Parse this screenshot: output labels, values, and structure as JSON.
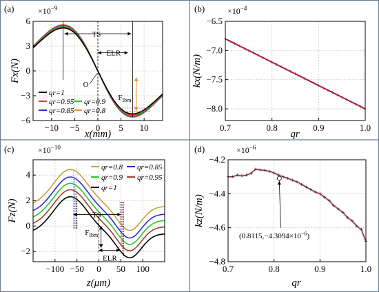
{
  "chart_data": [
    {
      "panel": "(a)",
      "type": "line",
      "xlabel": "x(mm)",
      "ylabel": "Fx(N)",
      "scale_label": "×10",
      "scale_exp": "−9",
      "xlim": [
        -14,
        14
      ],
      "ylim": [
        -6,
        6
      ],
      "xticks": [
        "−10",
        "−5",
        "0",
        "5",
        "10"
      ],
      "xtick_values": [
        -10,
        -5,
        0,
        5,
        10
      ],
      "yticks": [
        "6",
        "3",
        "0",
        "−3",
        "−6"
      ],
      "ytick_values": [
        6,
        3,
        0,
        -3,
        -6
      ],
      "series": [
        {
          "name": "qr=1",
          "color": "#000000",
          "peak": 5.2
        },
        {
          "name": "qr=0.95",
          "color": "#e8312a",
          "peak": 5.3
        },
        {
          "name": "qr=0.9",
          "color": "#28c828",
          "peak": 5.4
        },
        {
          "name": "qr=0.85",
          "color": "#2b2bd6",
          "peak": 5.5
        },
        {
          "name": "qr=0.8",
          "color": "#f08a24",
          "peak": 5.6
        }
      ],
      "annotations": {
        "ts": "TS",
        "elr": "ELR",
        "origin": "O",
        "fibm": "F",
        "fibm_sub": "Ibm"
      }
    },
    {
      "panel": "(b)",
      "type": "line",
      "xlabel": "qr",
      "ylabel": "kx(N/m)",
      "scale_label": "×10",
      "scale_exp": "−4",
      "xlim": [
        0.7,
        1.0
      ],
      "ylim": [
        -8.2,
        -6.5
      ],
      "xticks": [
        "0.7",
        "0.8",
        "0.9",
        "1.0"
      ],
      "xtick_values": [
        0.7,
        0.8,
        0.9,
        1.0
      ],
      "yticks": [
        "−6.5",
        "−7.0",
        "−7.5",
        "−8.0"
      ],
      "ytick_values": [
        -6.5,
        -7.0,
        -7.5,
        -8.0
      ],
      "series": [
        {
          "name": "kx",
          "color": "#c8102e",
          "x_start": 0.7,
          "x_end": 1.0,
          "y_start": -6.8,
          "y_end": -8.0,
          "n": 31
        }
      ]
    },
    {
      "panel": "(c)",
      "type": "line",
      "xlabel": "z(μm)",
      "ylabel": "Fz(N)",
      "scale_label": "×10",
      "scale_exp": "−10",
      "xlim": [
        -150,
        150
      ],
      "ylim": [
        -2.8,
        5.2
      ],
      "xticks": [
        "−100",
        "−50",
        "0",
        "50",
        "100"
      ],
      "xtick_values": [
        -100,
        -50,
        0,
        50,
        100
      ],
      "yticks": [
        "4",
        "2",
        "0",
        "−2"
      ],
      "ytick_values": [
        4,
        2,
        0,
        -2
      ],
      "series": [
        {
          "name": "qr=0.8",
          "color": "#c8a038",
          "offset": 1.55
        },
        {
          "name": "qr=0.85",
          "color": "#2b2bd6",
          "offset": 0.95
        },
        {
          "name": "qr=0.9",
          "color": "#28c828",
          "offset": 0.45
        },
        {
          "name": "qr=0.95",
          "color": "#a0402a",
          "offset": -0.05
        },
        {
          "name": "qr=1",
          "color": "#000000",
          "offset": -0.6
        }
      ],
      "annotations": {
        "ts": "TS",
        "elr": "ELR",
        "fibm": "F",
        "fibm_sub": "Ibm"
      }
    },
    {
      "panel": "(d)",
      "type": "line",
      "xlabel": "qr",
      "ylabel": "kz(N/m)",
      "scale_label": "×10",
      "scale_exp": "−6",
      "xlim": [
        0.7,
        1.0
      ],
      "ylim": [
        -4.8,
        -4.2
      ],
      "xticks": [
        "0.7",
        "0.8",
        "0.9",
        "1.0"
      ],
      "xtick_values": [
        0.7,
        0.8,
        0.9,
        1.0
      ],
      "yticks": [
        "−4.2",
        "−4.4",
        "−4.6",
        "−4.8"
      ],
      "ytick_values": [
        -4.2,
        -4.4,
        -4.6,
        -4.8
      ],
      "series": [
        {
          "name": "kz",
          "color": "#7a2f2f",
          "x": [
            0.7,
            0.71,
            0.72,
            0.73,
            0.74,
            0.75,
            0.76,
            0.77,
            0.78,
            0.79,
            0.8,
            0.81,
            0.82,
            0.83,
            0.84,
            0.85,
            0.86,
            0.87,
            0.88,
            0.89,
            0.9,
            0.91,
            0.92,
            0.93,
            0.94,
            0.95,
            0.96,
            0.97,
            0.98,
            0.99,
            1.0
          ],
          "y": [
            -4.3,
            -4.3,
            -4.29,
            -4.295,
            -4.29,
            -4.28,
            -4.255,
            -4.26,
            -4.262,
            -4.268,
            -4.278,
            -4.29,
            -4.3,
            -4.309,
            -4.32,
            -4.33,
            -4.345,
            -4.36,
            -4.375,
            -4.39,
            -4.4,
            -4.42,
            -4.44,
            -4.47,
            -4.49,
            -4.51,
            -4.54,
            -4.56,
            -4.59,
            -4.61,
            -4.68
          ]
        }
      ],
      "annotations": {
        "point_label": "(0.8115,−4.3094×10",
        "point_exp": "−6",
        "point_close": ")",
        "point_x": 0.8115,
        "point_y": -4.3094
      }
    }
  ]
}
